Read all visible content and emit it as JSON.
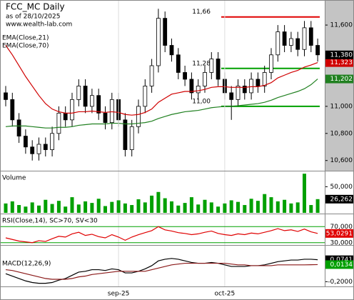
{
  "chart_data": [
    {
      "type": "candlestick",
      "title": "FCC_MC Daily",
      "subtitle": "as of 28/10/2025",
      "source": "www.wealth-lab.com",
      "categories": [
        null,
        null,
        null,
        null,
        null,
        null,
        null,
        null,
        null,
        null,
        null,
        null,
        null,
        null,
        null,
        null,
        null,
        "sep-25",
        null,
        null,
        null,
        null,
        null,
        null,
        null,
        null,
        null,
        null,
        null,
        null,
        null,
        null,
        null,
        "oct-25",
        null,
        null,
        null,
        null,
        null,
        null,
        null,
        null,
        null,
        null,
        null,
        null,
        null,
        null
      ],
      "open": [
        11100,
        11050,
        10900,
        10780,
        10700,
        10650,
        10720,
        10680,
        10800,
        10950,
        10900,
        11050,
        11150,
        11000,
        11080,
        10950,
        10880,
        11050,
        10900,
        10680,
        10850,
        11000,
        11150,
        11300,
        11650,
        11450,
        11380,
        11250,
        11200,
        11100,
        11150,
        11250,
        11350,
        11200,
        11100,
        11050,
        11150,
        11100,
        11200,
        11150,
        11250,
        11380,
        11550,
        11450,
        11500,
        11420,
        11580,
        11450
      ],
      "high": [
        11150,
        11100,
        10950,
        10830,
        10750,
        10770,
        10770,
        10850,
        11000,
        11000,
        11100,
        11200,
        11200,
        11130,
        11130,
        11000,
        11100,
        11100,
        10950,
        10900,
        11050,
        11200,
        11350,
        11720,
        11700,
        11500,
        11430,
        11300,
        11250,
        11200,
        11300,
        11400,
        11400,
        11250,
        11150,
        11200,
        11200,
        11250,
        11250,
        11300,
        11430,
        11600,
        11600,
        11550,
        11550,
        11630,
        11630,
        11500
      ],
      "low": [
        11000,
        10850,
        10730,
        10650,
        10600,
        10600,
        10630,
        10630,
        10750,
        10850,
        10850,
        11000,
        10950,
        10950,
        10900,
        10830,
        10830,
        10850,
        10630,
        10630,
        10800,
        10950,
        11100,
        11250,
        11400,
        11330,
        11200,
        11150,
        11050,
        11050,
        11100,
        11200,
        11150,
        11050,
        10900,
        11000,
        11050,
        11050,
        11100,
        11100,
        11200,
        11330,
        11400,
        11400,
        11370,
        11370,
        11400,
        11330
      ],
      "close": [
        11050,
        10900,
        10780,
        10700,
        10650,
        10720,
        10680,
        10800,
        10950,
        10900,
        11050,
        11150,
        11000,
        11080,
        10950,
        10880,
        11050,
        10900,
        10680,
        10850,
        11000,
        11150,
        11300,
        11650,
        11450,
        11380,
        11250,
        11200,
        11100,
        11150,
        11250,
        11350,
        11200,
        11100,
        11050,
        11150,
        11100,
        11200,
        11150,
        11250,
        11380,
        11550,
        11450,
        11500,
        11420,
        11580,
        11450,
        11380
      ],
      "value_labels": {
        "47": "11,380"
      },
      "series": [
        {
          "name": "EMA(Close,21)",
          "color": "#d00000",
          "values": [
            11450,
            11380,
            11300,
            11220,
            11150,
            11080,
            11020,
            10980,
            10960,
            10950,
            10950,
            10960,
            10960,
            10965,
            10960,
            10955,
            10960,
            10955,
            10940,
            10935,
            10940,
            10955,
            10980,
            11030,
            11060,
            11090,
            11100,
            11110,
            11110,
            11115,
            11125,
            11140,
            11145,
            11145,
            11140,
            11140,
            11140,
            11145,
            11145,
            11155,
            11175,
            11210,
            11230,
            11250,
            11265,
            11290,
            11305,
            11323
          ],
          "value_labels": {
            "47": "11,323"
          }
        },
        {
          "name": "EMA(Close,70)",
          "color": "#208020",
          "values": [
            10850,
            10855,
            10855,
            10855,
            10850,
            10845,
            10840,
            10840,
            10845,
            10845,
            10850,
            10860,
            10865,
            10870,
            10870,
            10870,
            10875,
            10875,
            10870,
            10870,
            10875,
            10880,
            10890,
            10910,
            10925,
            10940,
            10950,
            10960,
            10965,
            10970,
            10980,
            10990,
            10995,
            11000,
            11000,
            11005,
            11010,
            11015,
            11020,
            11030,
            11045,
            11065,
            11080,
            11095,
            11110,
            11130,
            11160,
            11202
          ],
          "value_labels": {
            "47": "11,202"
          }
        }
      ],
      "levels": [
        {
          "value": 11660,
          "label": "11,66",
          "color": "#e00000"
        },
        {
          "value": 11280,
          "label": "11,28",
          "color": "#00a000"
        },
        {
          "value": 11000,
          "label": "11,00",
          "color": "#00a000"
        }
      ],
      "ylim": [
        10530,
        11785
      ],
      "yticks": [
        {
          "value": 11600,
          "label": "11,600"
        },
        {
          "value": 11000,
          "label": "11,000"
        },
        {
          "value": 10800,
          "label": "10,800"
        },
        {
          "value": 10600,
          "label": "10,600"
        }
      ]
    },
    {
      "type": "bar",
      "title": "Volume",
      "color": "#00a000",
      "values": [
        18000,
        22000,
        15000,
        12000,
        20000,
        14000,
        25000,
        17000,
        23000,
        12000,
        30000,
        16000,
        22000,
        19000,
        27000,
        13000,
        21000,
        24000,
        18000,
        15000,
        26000,
        20000,
        33000,
        40000,
        28000,
        22000,
        14000,
        19000,
        30000,
        16000,
        25000,
        20000,
        12000,
        18000,
        24000,
        21000,
        15000,
        27000,
        23000,
        36000,
        30000,
        22000,
        25000,
        18000,
        20000,
        75000,
        15000,
        26262
      ],
      "value_labels": {
        "47": "26,262"
      },
      "ylim": [
        0,
        78000
      ],
      "yticks": [
        {
          "value": 50000,
          "label": "50,000"
        }
      ]
    },
    {
      "type": "line",
      "title": "RSI(Close,14), SC>70, SV<30",
      "grid_color": "#00a000",
      "series": [
        {
          "color": "#e00000",
          "values": [
            42,
            38,
            34,
            32,
            30,
            35,
            33,
            40,
            46,
            44,
            52,
            56,
            48,
            51,
            45,
            42,
            50,
            44,
            36,
            44,
            50,
            55,
            60,
            70,
            62,
            59,
            55,
            53,
            50,
            52,
            56,
            59,
            53,
            50,
            48,
            52,
            50,
            54,
            52,
            56,
            60,
            65,
            60,
            62,
            58,
            64,
            57,
            53.0291
          ],
          "value_labels": {
            "47": "53,0291"
          }
        }
      ],
      "ylim": [
        26,
        99
      ],
      "yticks": [
        {
          "value": 70,
          "label": "70,000"
        },
        {
          "value": 30,
          "label": "30,000"
        }
      ]
    },
    {
      "type": "line",
      "title": "MACD(12,26,9)",
      "series": [
        {
          "color": "#000000",
          "values": [
            -0.1,
            -0.13,
            -0.16,
            -0.19,
            -0.21,
            -0.22,
            -0.22,
            -0.21,
            -0.18,
            -0.16,
            -0.12,
            -0.08,
            -0.07,
            -0.05,
            -0.05,
            -0.06,
            -0.04,
            -0.05,
            -0.09,
            -0.09,
            -0.07,
            -0.04,
            0,
            0.06,
            0.08,
            0.09,
            0.08,
            0.06,
            0.04,
            0.03,
            0.03,
            0.04,
            0.03,
            0.01,
            -0.01,
            -0.01,
            -0.01,
            0,
            0,
            0.01,
            0.03,
            0.05,
            0.06,
            0.07,
            0.07,
            0.08,
            0.08,
            0.0741
          ],
          "value_labels": {
            "47": "0,0741"
          }
        },
        {
          "color": "#8b1a1a",
          "label_color": "#00a000",
          "values": [
            -0.05,
            -0.06,
            -0.08,
            -0.1,
            -0.12,
            -0.14,
            -0.16,
            -0.17,
            -0.17,
            -0.17,
            -0.16,
            -0.14,
            -0.13,
            -0.11,
            -0.1,
            -0.09,
            -0.08,
            -0.07,
            -0.07,
            -0.07,
            -0.07,
            -0.07,
            -0.05,
            -0.03,
            -0.01,
            0.01,
            0.02,
            0.03,
            0.03,
            0.03,
            0.03,
            0.03,
            0.03,
            0.03,
            0.02,
            0.01,
            0.01,
            0,
            0,
            0,
            0,
            0.01,
            0.01,
            0.01,
            0.01,
            0.01,
            0.012,
            0.0134
          ],
          "value_labels": {
            "47": "0,0134"
          }
        }
      ],
      "ylim": [
        -0.25,
        0.24
      ],
      "yticks": [
        {
          "value": -0.2,
          "label": "-0,2000"
        }
      ]
    }
  ]
}
